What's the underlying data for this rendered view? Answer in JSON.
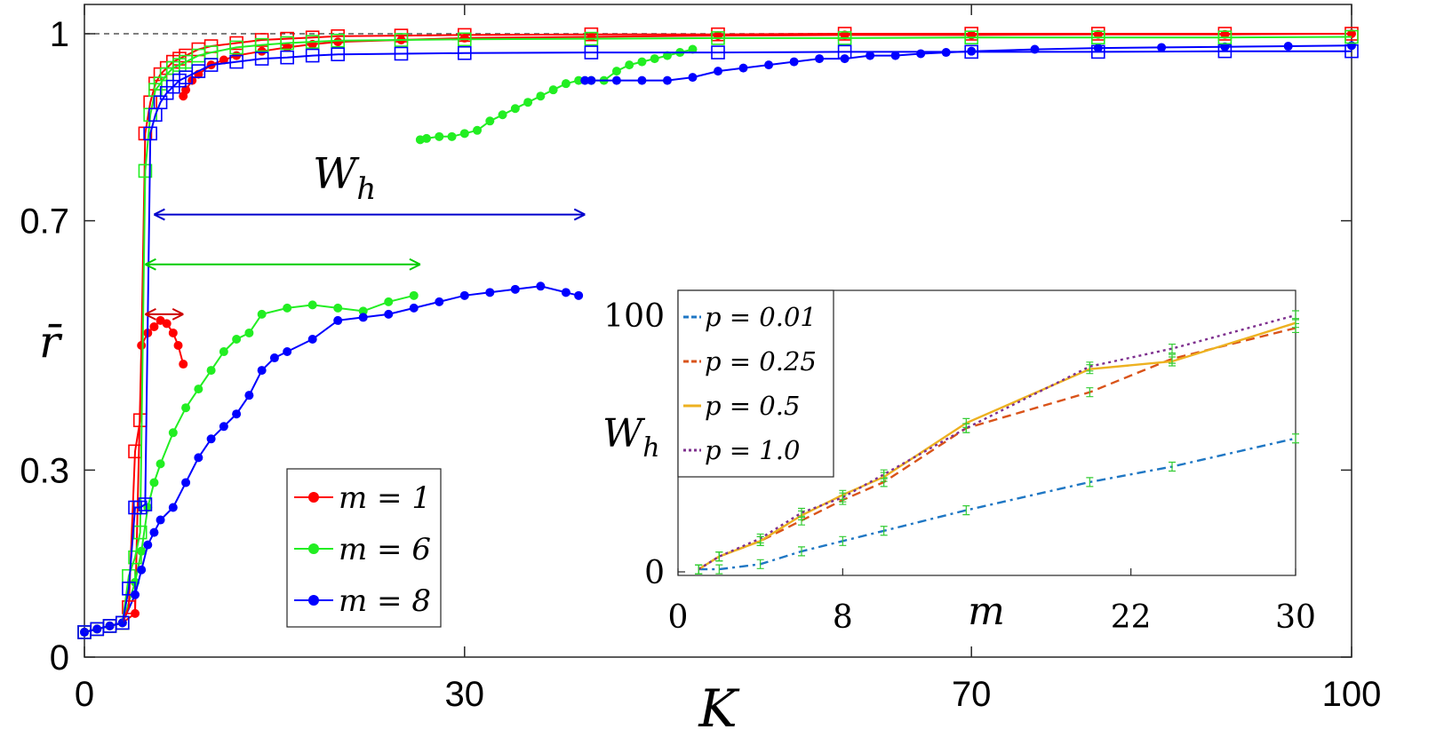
{
  "chart_data": [
    {
      "type": "line",
      "title": "",
      "xlabel": "K",
      "ylabel": "r̄",
      "xlim": [
        0,
        100
      ],
      "ylim": [
        0,
        1
      ],
      "x_ticks": [
        "0",
        "30",
        "70",
        "100"
      ],
      "x_tick_values": [
        0,
        30,
        70,
        100
      ],
      "y_ticks": [
        "0",
        "0.3",
        "0.7",
        "1"
      ],
      "y_tick_values": [
        0,
        0.3,
        0.7,
        1
      ],
      "reference_line": {
        "y": 1,
        "style": "dashed",
        "color": "#555555"
      },
      "legend": {
        "position": "bottom-left",
        "entries": [
          "m = 1",
          "m = 6",
          "m = 8"
        ]
      },
      "annotation": {
        "text": "W",
        "subscript": "h"
      },
      "colors": {
        "m1": "#ff0000",
        "m6": "#22ee22",
        "m8": "#0000ff",
        "dark_red": "#cc0000",
        "dark_green": "#00cc00",
        "dark_blue": "#0000cc"
      },
      "series": [
        {
          "name": "m = 1",
          "color": "#ff0000",
          "marker": "dot",
          "x": [
            0,
            1,
            2,
            3,
            4,
            4.5,
            5,
            5.5,
            6,
            6.5,
            7,
            7.4,
            7.8
          ],
          "y": [
            0.04,
            0.045,
            0.05,
            0.055,
            0.07,
            0.5,
            0.52,
            0.53,
            0.54,
            0.535,
            0.52,
            0.5,
            0.47
          ]
        },
        {
          "name": "m = 1 (backward)",
          "color": "#ff0000",
          "marker": "dot",
          "x": [
            7.8,
            8.0,
            8.5,
            9,
            10,
            11,
            12,
            14,
            16,
            18,
            20,
            25,
            30,
            40,
            50,
            60,
            70,
            80,
            90,
            100
          ],
          "y": [
            0.9,
            0.91,
            0.925,
            0.935,
            0.95,
            0.958,
            0.965,
            0.972,
            0.978,
            0.983,
            0.987,
            0.99,
            0.993,
            0.995,
            0.997,
            0.998,
            0.998,
            0.999,
            0.999,
            1.0
          ]
        },
        {
          "name": "m = 6",
          "color": "#22ee22",
          "marker": "dot",
          "x": [
            0,
            1,
            2,
            3,
            4,
            4.5,
            5,
            5.5,
            6,
            7,
            8,
            9,
            10,
            11,
            12,
            13,
            14,
            16,
            18,
            20,
            22,
            24,
            26
          ],
          "y": [
            0.04,
            0.045,
            0.05,
            0.055,
            0.12,
            0.17,
            0.24,
            0.28,
            0.31,
            0.36,
            0.4,
            0.43,
            0.46,
            0.49,
            0.51,
            0.52,
            0.55,
            0.56,
            0.565,
            0.56,
            0.555,
            0.57,
            0.58
          ]
        },
        {
          "name": "m = 6 (backward)",
          "color": "#22ee22",
          "marker": "dot",
          "x": [
            26.5,
            27,
            28,
            29,
            30,
            31,
            32,
            33,
            34,
            35,
            36,
            37,
            38,
            39,
            40,
            41,
            42,
            43,
            44,
            45,
            46,
            47,
            48
          ],
          "y": [
            0.83,
            0.832,
            0.835,
            0.835,
            0.84,
            0.845,
            0.86,
            0.87,
            0.88,
            0.89,
            0.9,
            0.91,
            0.92,
            0.925,
            0.925,
            0.925,
            0.94,
            0.95,
            0.955,
            0.96,
            0.965,
            0.97,
            0.975
          ]
        },
        {
          "name": "m = 8",
          "color": "#0000ff",
          "marker": "dot",
          "x": [
            0,
            1,
            2,
            3,
            4,
            4.5,
            5,
            5.5,
            6,
            7,
            8,
            9,
            10,
            11,
            12,
            13,
            14,
            15,
            16,
            18,
            20,
            22,
            24,
            26,
            28,
            30,
            32,
            34,
            36,
            38,
            39
          ],
          "y": [
            0.04,
            0.045,
            0.05,
            0.055,
            0.1,
            0.14,
            0.18,
            0.2,
            0.22,
            0.24,
            0.28,
            0.32,
            0.35,
            0.37,
            0.39,
            0.42,
            0.46,
            0.48,
            0.49,
            0.51,
            0.54,
            0.545,
            0.55,
            0.56,
            0.57,
            0.58,
            0.585,
            0.59,
            0.595,
            0.585,
            0.58
          ]
        },
        {
          "name": "m = 8 (backward)",
          "color": "#0000ff",
          "marker": "dot",
          "x": [
            39.5,
            40,
            42,
            44,
            46,
            48,
            50,
            52,
            54,
            56,
            58,
            60,
            62,
            64,
            66,
            68,
            70,
            75,
            80,
            85,
            90,
            95,
            100
          ],
          "y": [
            0.925,
            0.925,
            0.925,
            0.925,
            0.925,
            0.93,
            0.94,
            0.945,
            0.95,
            0.955,
            0.96,
            0.96,
            0.965,
            0.965,
            0.968,
            0.97,
            0.972,
            0.975,
            0.977,
            0.978,
            0.979,
            0.98,
            0.981
          ]
        },
        {
          "name": "m = 1 (squares)",
          "color": "#ff0000",
          "marker": "square",
          "x": [
            0,
            1,
            2,
            3,
            3.5,
            4,
            4.4,
            4.8,
            5.2,
            5.6,
            6,
            6.5,
            7,
            7.5,
            8,
            9,
            10,
            12,
            14,
            16,
            18,
            20,
            25,
            30,
            40,
            50,
            60,
            70,
            80,
            90,
            100
          ],
          "y": [
            0.04,
            0.045,
            0.05,
            0.055,
            0.08,
            0.33,
            0.38,
            0.84,
            0.89,
            0.92,
            0.935,
            0.945,
            0.955,
            0.96,
            0.965,
            0.975,
            0.98,
            0.985,
            0.99,
            0.992,
            0.994,
            0.996,
            0.997,
            0.998,
            0.999,
            0.999,
            1.0,
            1.0,
            1.0,
            1.0,
            1.0
          ]
        },
        {
          "name": "m = 6 (squares)",
          "color": "#22ee22",
          "marker": "square",
          "x": [
            0,
            1,
            2,
            3,
            3.5,
            4,
            4.4,
            4.8,
            5.2,
            5.6,
            6,
            6.5,
            7,
            7.5,
            8,
            9,
            10,
            12,
            14,
            16,
            18,
            20,
            25,
            30,
            40,
            50,
            60,
            70,
            80,
            90,
            100
          ],
          "y": [
            0.04,
            0.045,
            0.05,
            0.055,
            0.13,
            0.16,
            0.2,
            0.78,
            0.87,
            0.91,
            0.92,
            0.935,
            0.945,
            0.95,
            0.955,
            0.965,
            0.97,
            0.978,
            0.982,
            0.985,
            0.987,
            0.989,
            0.99,
            0.991,
            0.992,
            0.993,
            0.993,
            0.994,
            0.994,
            0.994,
            0.995
          ]
        },
        {
          "name": "m = 8 (squares)",
          "color": "#0000ff",
          "marker": "square",
          "x": [
            0,
            1,
            2,
            3,
            3.5,
            4,
            4.4,
            4.8,
            5.2,
            5.6,
            6,
            6.5,
            7,
            7.5,
            8,
            9,
            10,
            12,
            14,
            16,
            18,
            20,
            25,
            30,
            40,
            50,
            60,
            70,
            80,
            90,
            100
          ],
          "y": [
            0.04,
            0.045,
            0.05,
            0.055,
            0.11,
            0.24,
            0.24,
            0.245,
            0.84,
            0.87,
            0.89,
            0.905,
            0.915,
            0.925,
            0.93,
            0.94,
            0.95,
            0.955,
            0.96,
            0.962,
            0.965,
            0.967,
            0.968,
            0.969,
            0.97,
            0.97,
            0.971,
            0.971,
            0.971,
            0.972,
            0.972
          ]
        }
      ],
      "width_arrows": [
        {
          "color": "#cc0000",
          "y": 0.55,
          "x_from": 4.8,
          "x_to": 7.8
        },
        {
          "color": "#00cc00",
          "y": 0.63,
          "x_from": 4.8,
          "x_to": 26.5
        },
        {
          "color": "#0000cc",
          "y": 0.71,
          "x_from": 5.5,
          "x_to": 39.5
        }
      ]
    },
    {
      "type": "line",
      "title": "",
      "xlabel": "m",
      "ylabel": "W",
      "ylabel_subscript": "h",
      "xlim": [
        0,
        30
      ],
      "ylim": [
        0,
        100
      ],
      "x_ticks": [
        "0",
        "8",
        "22",
        "30"
      ],
      "x_tick_values": [
        0,
        8,
        22,
        30
      ],
      "y_ticks": [
        "0",
        "100"
      ],
      "y_tick_values": [
        0,
        100
      ],
      "legend": {
        "position": "top-left",
        "entries": [
          "p = 0.01",
          "p = 0.25",
          "p = 0.5",
          "p = 1.0"
        ]
      },
      "error_bar_color": "#33cc33",
      "series": [
        {
          "name": "p = 0.01",
          "color": "#1f77c4",
          "style": "dashdot",
          "x": [
            1,
            2,
            4,
            6,
            8,
            10,
            14,
            20,
            24,
            30
          ],
          "y": [
            1,
            1,
            3,
            8,
            12,
            16,
            24,
            35,
            41,
            52
          ]
        },
        {
          "name": "p = 0.25",
          "color": "#d95319",
          "style": "dashed",
          "x": [
            1,
            2,
            4,
            6,
            8,
            10,
            14,
            20,
            24,
            30
          ],
          "y": [
            1,
            6,
            12,
            20,
            28,
            35,
            56,
            70,
            83,
            95
          ]
        },
        {
          "name": "p = 0.5",
          "color": "#edb120",
          "style": "solid",
          "x": [
            1,
            2,
            4,
            6,
            8,
            10,
            14,
            20,
            24,
            30
          ],
          "y": [
            1,
            6,
            12,
            22,
            30,
            37,
            58,
            79,
            82,
            97
          ]
        },
        {
          "name": "p = 1.0",
          "color": "#7e2f8e",
          "style": "dotted",
          "x": [
            1,
            2,
            4,
            6,
            8,
            10,
            14,
            20,
            24,
            30
          ],
          "y": [
            1,
            6,
            13,
            23,
            29,
            38,
            56,
            80,
            87,
            100
          ]
        }
      ]
    }
  ]
}
